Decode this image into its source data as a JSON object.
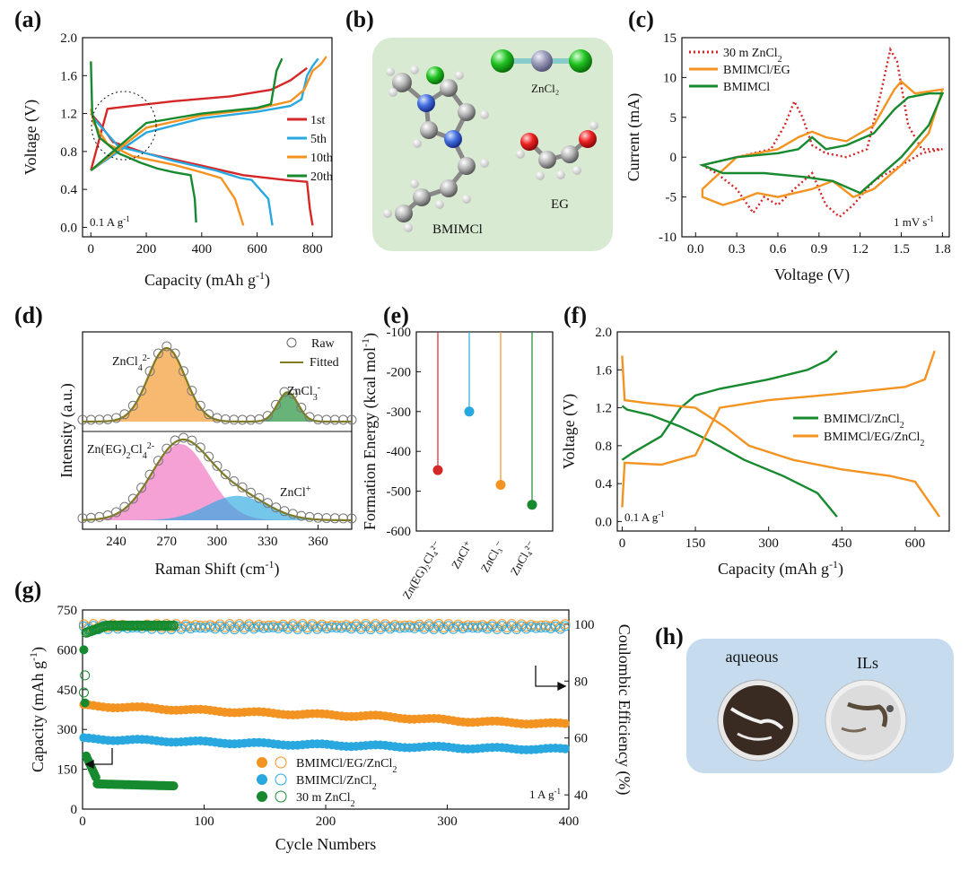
{
  "colors": {
    "red": "#d62728",
    "blue": "#29a8e0",
    "orange": "#f39322",
    "green": "#178a2f",
    "pink": "#f06fc0",
    "fit": "#7d7a1f"
  },
  "chart_data": [
    {
      "id": "a",
      "panel_label": "(a)",
      "type": "line",
      "xlabel": "Capacity (mAh g",
      "xlabel_sup": "-1",
      "xlabel_end": ")",
      "ylabel": "Voltage (V)",
      "xlim": [
        -30,
        870
      ],
      "ylim": [
        -0.1,
        2.0
      ],
      "xticks": [
        "0",
        "200",
        "400",
        "600",
        "800"
      ],
      "yticks": [
        "0.0",
        "0.4",
        "0.8",
        "1.2",
        "1.6",
        "2.0"
      ],
      "annotation": "0.1 A g",
      "annotation_sup": "-1",
      "series": [
        {
          "name": "1st",
          "color": "red",
          "charge": {
            "x": [
              0,
              60,
              150,
              300,
              500,
              650,
              720,
              780
            ],
            "y": [
              0.6,
              1.25,
              1.28,
              1.33,
              1.38,
              1.45,
              1.55,
              1.68
            ]
          },
          "discharge": {
            "x": [
              0,
              30,
              80,
              200,
              400,
              550,
              700,
              780,
              790,
              800
            ],
            "y": [
              1.2,
              1.1,
              0.9,
              0.78,
              0.65,
              0.55,
              0.5,
              0.48,
              0.2,
              0.02
            ]
          }
        },
        {
          "name": "5th",
          "color": "blue",
          "charge": {
            "x": [
              0,
              200,
              400,
              600,
              720,
              760,
              780,
              800,
              820
            ],
            "y": [
              0.6,
              1.0,
              1.15,
              1.22,
              1.28,
              1.35,
              1.6,
              1.7,
              1.78
            ]
          },
          "discharge": {
            "x": [
              0,
              10,
              100,
              200,
              300,
              450,
              540,
              580,
              640,
              655
            ],
            "y": [
              1.25,
              1.15,
              0.85,
              0.78,
              0.7,
              0.6,
              0.52,
              0.5,
              0.3,
              0.02
            ]
          }
        },
        {
          "name": "10th",
          "color": "orange",
          "charge": {
            "x": [
              0,
              200,
              400,
              600,
              720,
              770,
              800,
              830,
              850
            ],
            "y": [
              0.6,
              1.05,
              1.18,
              1.25,
              1.33,
              1.45,
              1.65,
              1.72,
              1.8
            ]
          },
          "discharge": {
            "x": [
              0,
              10,
              60,
              150,
              300,
              400,
              470,
              520,
              550
            ],
            "y": [
              1.25,
              1.1,
              0.88,
              0.75,
              0.66,
              0.58,
              0.52,
              0.3,
              0.02
            ]
          }
        },
        {
          "name": "20th",
          "color": "green",
          "charge": {
            "x": [
              0,
              200,
              400,
              600,
              650,
              670,
              690
            ],
            "y": [
              0.6,
              1.1,
              1.2,
              1.26,
              1.3,
              1.65,
              1.78
            ]
          },
          "discharge": {
            "x": [
              0,
              5,
              30,
              100,
              180,
              240,
              300,
              360,
              375,
              380
            ],
            "y": [
              1.75,
              1.2,
              0.95,
              0.78,
              0.68,
              0.62,
              0.58,
              0.55,
              0.3,
              0.05
            ]
          }
        }
      ]
    },
    {
      "id": "c",
      "panel_label": "(c)",
      "type": "line",
      "xlabel": "Voltage (V)",
      "ylabel": "Current (mA)",
      "xlim": [
        -0.1,
        1.85
      ],
      "ylim": [
        -10,
        15
      ],
      "xticks": [
        "0.0",
        "0.3",
        "0.6",
        "0.9",
        "1.2",
        "1.5",
        "1.8"
      ],
      "yticks": [
        "-10",
        "-5",
        "0",
        "5",
        "10",
        "15"
      ],
      "annotation": "1 mV s",
      "annotation_sup": "-1",
      "series": [
        {
          "name": "30 m ZnCl",
          "name_sub": "2",
          "color": "red",
          "dashed": true,
          "x": [
            0.05,
            0.3,
            0.55,
            0.65,
            0.72,
            0.78,
            0.85,
            0.95,
            1.1,
            1.25,
            1.35,
            1.42,
            1.47,
            1.55,
            1.65,
            1.8,
            1.65,
            1.5,
            1.3,
            1.15,
            1.05,
            0.95,
            0.85,
            0.72,
            0.6,
            0.5,
            0.42,
            0.3,
            0.15,
            0.05
          ],
          "y": [
            -1,
            0,
            1,
            4,
            7,
            5,
            1.5,
            0.5,
            0,
            1,
            8,
            13.5,
            12,
            4,
            1,
            1,
            0.5,
            -1,
            -3,
            -6,
            -7.5,
            -6,
            -2,
            -4,
            -6,
            -5,
            -7,
            -4,
            -2,
            -1
          ]
        },
        {
          "name": "BMIMCl/EG",
          "color": "orange",
          "x": [
            0.05,
            0.3,
            0.6,
            0.75,
            0.85,
            0.95,
            1.1,
            1.3,
            1.45,
            1.5,
            1.6,
            1.8,
            1.7,
            1.5,
            1.3,
            1.15,
            1.0,
            0.85,
            0.6,
            0.45,
            0.3,
            0.2,
            0.05
          ],
          "y": [
            -4,
            0,
            1,
            2.5,
            3.2,
            2.5,
            2,
            4,
            8.5,
            9.5,
            8,
            8.5,
            3,
            -1,
            -4,
            -5,
            -3,
            -4,
            -5,
            -4.5,
            -5.5,
            -6,
            -5
          ]
        },
        {
          "name": "BMIMCl",
          "color": "green",
          "x": [
            0.05,
            0.3,
            0.6,
            0.75,
            0.85,
            0.95,
            1.1,
            1.3,
            1.45,
            1.55,
            1.7,
            1.8,
            1.7,
            1.5,
            1.3,
            1.2,
            1.0,
            0.8,
            0.5,
            0.2,
            0.05
          ],
          "y": [
            -1,
            0,
            0.5,
            1,
            2.5,
            1,
            1.5,
            3,
            6,
            7.5,
            8,
            8,
            4,
            0,
            -3,
            -4.5,
            -3,
            -2.5,
            -2,
            -2,
            -1
          ]
        }
      ]
    },
    {
      "id": "d",
      "panel_label": "(d)",
      "type": "scatter",
      "xlabel": "Raman Shift (cm",
      "xlabel_sup": "-1",
      "xlabel_end": ")",
      "ylabel": "Intensity (a.u.)",
      "xlim": [
        220,
        380
      ],
      "xticks": [
        "240",
        "270",
        "300",
        "330",
        "360"
      ],
      "legend": [
        "Raw",
        "Fitted"
      ],
      "top_labels": [
        {
          "text": "ZnCl",
          "sub": "4",
          "sup": "2-"
        },
        {
          "text": "ZnCl",
          "sub": "3",
          "sup": "-"
        }
      ],
      "bottom_labels": [
        {
          "text": "Zn(EG)",
          "sub": "2",
          "text2": "Cl",
          "sub2": "4",
          "sup": "2-"
        },
        {
          "text": "ZnCl",
          "sup": "+"
        }
      ],
      "top_peaks": [
        {
          "center": 270,
          "height": 1.0,
          "width": 11,
          "color": "orange"
        },
        {
          "center": 342,
          "height": 0.4,
          "width": 6,
          "color": "green"
        }
      ],
      "bottom_peaks": [
        {
          "center": 278,
          "height": 1.0,
          "width": 17,
          "color": "pink"
        },
        {
          "center": 312,
          "height": 0.32,
          "width": 18,
          "color": "blue"
        }
      ]
    },
    {
      "id": "e",
      "panel_label": "(e)",
      "type": "scatter",
      "ylabel": "Formation Energy (kcal mol",
      "ylabel_sup": "-1",
      "ylabel_end": ")",
      "ylim": [
        -600,
        -100
      ],
      "yticks": [
        "-100",
        "-200",
        "-300",
        "-400",
        "-500",
        "-600"
      ],
      "categories": [
        "Zn(EG)₂Cl₄²⁻",
        "ZnCl⁺",
        "ZnCl₃⁻",
        "ZnCl₄²⁻"
      ],
      "values": [
        -447,
        -300,
        -484,
        -534
      ],
      "colors": [
        "red",
        "blue",
        "orange",
        "green"
      ]
    },
    {
      "id": "f",
      "panel_label": "(f)",
      "type": "line",
      "xlabel": "Capacity (mAh g",
      "xlabel_sup": "-1",
      "xlabel_end": ")",
      "ylabel": "Voltage (V)",
      "xlim": [
        -10,
        670
      ],
      "ylim": [
        -0.1,
        2.0
      ],
      "xticks": [
        "0",
        "150",
        "300",
        "450",
        "600"
      ],
      "yticks": [
        "0.0",
        "0.4",
        "0.8",
        "1.2",
        "1.6",
        "2.0"
      ],
      "annotation": "0.1 A g",
      "annotation_sup": "-1",
      "series": [
        {
          "name": "BMIMCl/ZnCl",
          "name_sub": "2",
          "color": "green",
          "charge": {
            "x": [
              0,
              20,
              80,
              120,
              150,
              200,
              300,
              380,
              420,
              440
            ],
            "y": [
              0.65,
              0.72,
              0.9,
              1.2,
              1.33,
              1.4,
              1.5,
              1.6,
              1.7,
              1.8
            ]
          },
          "discharge": {
            "x": [
              0,
              10,
              60,
              120,
              180,
              250,
              330,
              400,
              440
            ],
            "y": [
              1.22,
              1.18,
              1.12,
              1.0,
              0.85,
              0.65,
              0.48,
              0.3,
              0.05
            ]
          }
        },
        {
          "name": "BMIMCl/EG/ZnCl",
          "name_sub": "2",
          "color": "orange",
          "charge": {
            "x": [
              0,
              5,
              80,
              150,
              180,
              200,
              300,
              450,
              580,
              620,
              640
            ],
            "y": [
              0.15,
              0.62,
              0.6,
              0.7,
              1.0,
              1.2,
              1.28,
              1.35,
              1.42,
              1.5,
              1.8
            ]
          },
          "discharge": {
            "x": [
              0,
              5,
              50,
              150,
              210,
              260,
              350,
              450,
              550,
              600,
              630,
              650
            ],
            "y": [
              1.75,
              1.28,
              1.25,
              1.2,
              1.0,
              0.8,
              0.65,
              0.55,
              0.48,
              0.42,
              0.2,
              0.05
            ]
          }
        }
      ]
    },
    {
      "id": "g",
      "panel_label": "(g)",
      "type": "scatter",
      "xlabel": "Cycle Numbers",
      "ylabel": "Capacity (mAh g",
      "ylabel_sup": "-1",
      "ylabel_end": ")",
      "y2label": "Coulombic Efficiency (%)",
      "xlim": [
        0,
        400
      ],
      "ylim": [
        0,
        750
      ],
      "y2lim": [
        35,
        105
      ],
      "xticks": [
        "0",
        "100",
        "200",
        "300",
        "400"
      ],
      "yticks": [
        "0",
        "150",
        "300",
        "450",
        "600",
        "750"
      ],
      "y2ticks": [
        "40",
        "60",
        "80",
        "100"
      ],
      "annotation": "1 A g",
      "annotation_sup": "-1",
      "series": [
        {
          "name": "BMIMCl/EG/ZnCl",
          "name_sub": "2",
          "color": "orange",
          "cycles": 400,
          "capacity": [
            390,
            375,
            360,
            350,
            330,
            320
          ],
          "ce": [
            99.5,
            99.5
          ]
        },
        {
          "name": "BMIMCl/ZnCl",
          "name_sub": "2",
          "color": "blue",
          "cycles": 400,
          "capacity": [
            265,
            255,
            245,
            238,
            230,
            225
          ],
          "ce": [
            98.8,
            98.8
          ]
        },
        {
          "name": "30 m ZnCl",
          "name_sub": "2",
          "color": "green",
          "cycles": 75,
          "capacity": [
            600,
            200,
            110,
            95,
            90,
            88
          ],
          "ce": [
            70,
            97,
            99.5
          ]
        }
      ]
    }
  ],
  "panel_b": {
    "label": "(b)",
    "molecules": [
      "BMIMCl",
      "ZnCl₂",
      "EG"
    ]
  },
  "panel_h": {
    "label": "(h)",
    "left_text": "aqueous",
    "right_text": "ILs"
  }
}
